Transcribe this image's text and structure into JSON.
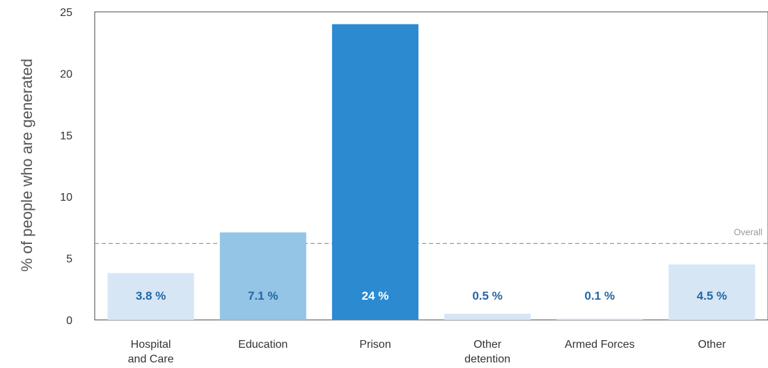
{
  "chart_data": {
    "type": "bar",
    "title": "",
    "xlabel": "",
    "ylabel": "% of people who are generated",
    "ylim": [
      0,
      25
    ],
    "yticks": [
      0,
      5,
      10,
      15,
      20,
      25
    ],
    "grid": false,
    "categories": [
      [
        "Hospital",
        "and Care"
      ],
      [
        "Education"
      ],
      [
        "Prison"
      ],
      [
        "Other",
        "detention"
      ],
      [
        "Armed Forces"
      ],
      [
        "Other"
      ]
    ],
    "values": [
      3.8,
      7.1,
      24,
      0.5,
      0.1,
      4.5
    ],
    "data_labels": [
      "3.8 %",
      "7.1 %",
      "24 %",
      "0.5 %",
      "0.1 %",
      "4.5 %"
    ],
    "reference_line": {
      "label": "Overall",
      "value": 6.2
    },
    "colors": {
      "bars": [
        "#d6e6f5",
        "#94c4e6",
        "#2b8ad0",
        "#d6e6f5",
        "#d6e6f5",
        "#d6e6f5"
      ],
      "labels": [
        "#2367a4",
        "#2367a4",
        "#ffffff",
        "#2367a4",
        "#2367a4",
        "#2367a4"
      ],
      "axis": "#444444",
      "reference": "#999999"
    }
  }
}
